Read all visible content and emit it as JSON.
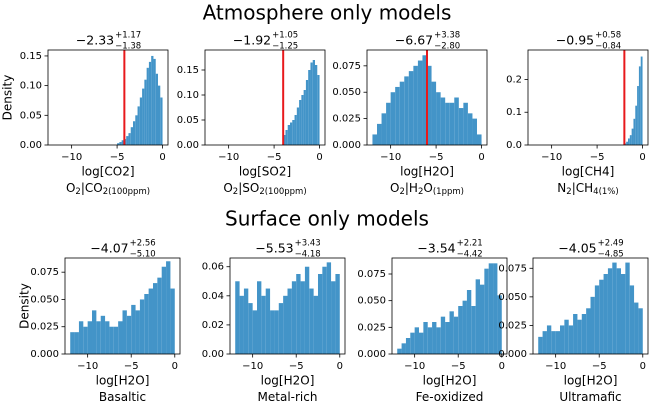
{
  "figure_titles": [
    "Atmosphere only models",
    "Surface only models"
  ],
  "chart_data": [
    {
      "type": "histogram",
      "title": {
        "value": "−2.33",
        "upper": "+1.17",
        "lower": "−1.38"
      },
      "xlabel": "log[CO2]",
      "ylabel": "Density",
      "sublabel": [
        {
          "text": "O"
        },
        {
          "text": "2",
          "sub": true
        },
        {
          "text": "|CO"
        },
        {
          "text": "2(100ppm)",
          "sub": true
        }
      ],
      "bins": [
        -5,
        -4.75,
        -4.5,
        -4.25,
        -4,
        -3.75,
        -3.5,
        -3.25,
        -3,
        -2.75,
        -2.5,
        -2.25,
        -2,
        -1.75,
        -1.5,
        -1.25,
        -1,
        -0.75,
        -0.5,
        -0.25,
        0
      ],
      "values": [
        0.003,
        0.005,
        0.008,
        0.01,
        0.015,
        0.02,
        0.03,
        0.04,
        0.05,
        0.065,
        0.08,
        0.095,
        0.11,
        0.13,
        0.14,
        0.15,
        0.145,
        0.12,
        0.1,
        0.08
      ],
      "color": "#4394c8",
      "vline": {
        "x": -4.2,
        "color": "#e8191c"
      },
      "xlim": [
        -12.6,
        0.6
      ],
      "xticks": [
        {
          "value": -10,
          "label": "−10"
        },
        {
          "value": -5,
          "label": "−5"
        },
        0
      ],
      "ylim": [
        0,
        0.16
      ],
      "yticks": [
        {
          "value": 0,
          "label": "0.00"
        },
        0.05,
        {
          "value": 0.1,
          "label": "0.10"
        },
        0.15
      ]
    },
    {
      "type": "histogram",
      "title": {
        "value": "−1.92",
        "upper": "+1.05",
        "lower": "−1.25"
      },
      "xlabel": "log[SO2]",
      "sublabel": [
        {
          "text": "O"
        },
        {
          "text": "2",
          "sub": true
        },
        {
          "text": "|SO"
        },
        {
          "text": "2(100ppm)",
          "sub": true
        }
      ],
      "bins": [
        -4,
        -3.75,
        -3.5,
        -3.25,
        -3,
        -2.75,
        -2.5,
        -2.25,
        -2,
        -1.75,
        -1.5,
        -1.25,
        -1,
        -0.75,
        -0.5,
        -0.25,
        0
      ],
      "values": [
        0.02,
        0.03,
        0.04,
        0.045,
        0.05,
        0.06,
        0.075,
        0.09,
        0.1,
        0.11,
        0.13,
        0.15,
        0.165,
        0.17,
        0.16,
        0.14
      ],
      "color": "#4394c8",
      "vline": {
        "x": -4,
        "color": "#e8191c"
      },
      "xlim": [
        -12.6,
        0.6
      ],
      "xticks": [
        {
          "value": -10,
          "label": "−10"
        },
        {
          "value": -5,
          "label": "−5"
        },
        0
      ],
      "ylim": [
        0,
        0.19
      ],
      "yticks": [
        {
          "value": 0,
          "label": "0.00"
        },
        0.05,
        {
          "value": 0.1,
          "label": "0.10"
        },
        0.15
      ]
    },
    {
      "type": "histogram",
      "title": {
        "value": "−6.67",
        "upper": "+3.38",
        "lower": "−2.80"
      },
      "xlabel": "log[H2O]",
      "sublabel": [
        {
          "text": "O"
        },
        {
          "text": "2",
          "sub": true
        },
        {
          "text": "|H"
        },
        {
          "text": "2",
          "sub": true
        },
        {
          "text": "O"
        },
        {
          "text": "(1ppm)",
          "sub": true
        }
      ],
      "bins": [
        -12,
        -11.5,
        -11,
        -10.5,
        -10,
        -9.5,
        -9,
        -8.5,
        -8,
        -7.5,
        -7,
        -6.5,
        -6,
        -5.5,
        -5,
        -4.5,
        -4,
        -3.5,
        -3,
        -2.5,
        -2,
        -1.5,
        -1,
        -0.5,
        0
      ],
      "values": [
        0.01,
        0.02,
        0.03,
        0.04,
        0.05,
        0.055,
        0.06,
        0.065,
        0.07,
        0.075,
        0.08,
        0.085,
        0.075,
        0.06,
        0.05,
        0.045,
        0.04,
        0.04,
        0.045,
        0.035,
        0.04,
        0.03,
        0.025,
        0.01
      ],
      "color": "#4394c8",
      "vline": {
        "x": -6,
        "color": "#e8191c"
      },
      "xlim": [
        -12.6,
        0.6
      ],
      "xticks": [
        {
          "value": -10,
          "label": "−10"
        },
        {
          "value": -5,
          "label": "−5"
        },
        0
      ],
      "ylim": [
        0,
        0.09
      ],
      "yticks": [
        {
          "value": 0,
          "label": "0.000"
        },
        0.025,
        {
          "value": 0.05,
          "label": "0.050"
        },
        0.075
      ]
    },
    {
      "type": "histogram",
      "title": {
        "value": "−0.95",
        "upper": "+0.58",
        "lower": "−0.84"
      },
      "xlabel": "log[CH4]",
      "sublabel": [
        {
          "text": "N"
        },
        {
          "text": "2",
          "sub": true
        },
        {
          "text": "|CH"
        },
        {
          "text": "4(1%)",
          "sub": true
        }
      ],
      "bins": [
        -2,
        -1.8,
        -1.6,
        -1.4,
        -1.2,
        -1,
        -0.8,
        -0.6,
        -0.4,
        -0.2,
        0
      ],
      "values": [
        0.005,
        0.01,
        0.02,
        0.03,
        0.05,
        0.08,
        0.12,
        0.18,
        0.24,
        0.27
      ],
      "color": "#4394c8",
      "vline": {
        "x": -2,
        "color": "#e8191c"
      },
      "xlim": [
        -12.6,
        0.6
      ],
      "xticks": [
        {
          "value": -10,
          "label": "−10"
        },
        {
          "value": -5,
          "label": "−5"
        },
        0
      ],
      "ylim": [
        0,
        0.29
      ],
      "yticks": [
        {
          "value": 0,
          "label": "0.0"
        },
        0.1,
        0.2
      ]
    },
    {
      "type": "histogram",
      "title": {
        "value": "−4.07",
        "upper": "+2.56",
        "lower": "−5.10"
      },
      "xlabel": "log[H2O]",
      "ylabel": "Density",
      "sublabel": [
        {
          "text": "Basaltic"
        }
      ],
      "bins": [
        -12,
        -11.5,
        -11,
        -10.5,
        -10,
        -9.5,
        -9,
        -8.5,
        -8,
        -7.5,
        -7,
        -6.5,
        -6,
        -5.5,
        -5,
        -4.5,
        -4,
        -3.5,
        -3,
        -2.5,
        -2,
        -1.5,
        -1,
        -0.5,
        0
      ],
      "values": [
        0.02,
        0.02,
        0.03,
        0.025,
        0.03,
        0.04,
        0.03,
        0.035,
        0.03,
        0.025,
        0.025,
        0.03,
        0.04,
        0.035,
        0.045,
        0.04,
        0.05,
        0.055,
        0.06,
        0.065,
        0.07,
        0.08,
        0.085,
        0.06
      ],
      "color": "#4394c8",
      "xlim": [
        -12.6,
        0.6
      ],
      "xticks": [
        {
          "value": -10,
          "label": "−10"
        },
        {
          "value": -5,
          "label": "−5"
        },
        0
      ],
      "ylim": [
        0,
        0.088
      ],
      "yticks": [
        {
          "value": 0,
          "label": "0.000"
        },
        0.025,
        {
          "value": 0.05,
          "label": "0.050"
        },
        0.075
      ]
    },
    {
      "type": "histogram",
      "title": {
        "value": "−5.53",
        "upper": "+3.43",
        "lower": "−4.18"
      },
      "xlabel": "log[H2O]",
      "sublabel": [
        {
          "text": "Metal-rich"
        }
      ],
      "bins": [
        -12,
        -11.5,
        -11,
        -10.5,
        -10,
        -9.5,
        -9,
        -8.5,
        -8,
        -7.5,
        -7,
        -6.5,
        -6,
        -5.5,
        -5,
        -4.5,
        -4,
        -3.5,
        -3,
        -2.5,
        -2,
        -1.5,
        -1,
        -0.5,
        0
      ],
      "values": [
        0.05,
        0.04,
        0.045,
        0.035,
        0.03,
        0.05,
        0.04,
        0.045,
        0.03,
        0.03,
        0.035,
        0.04,
        0.045,
        0.05,
        0.055,
        0.05,
        0.06,
        0.045,
        0.04,
        0.055,
        0.06,
        0.063,
        0.05,
        0.055
      ],
      "color": "#4394c8",
      "xlim": [
        -12.6,
        0.6
      ],
      "xticks": [
        {
          "value": -10,
          "label": "−10"
        },
        {
          "value": -5,
          "label": "−5"
        },
        0
      ],
      "ylim": [
        0,
        0.066
      ],
      "yticks": [
        {
          "value": 0,
          "label": "0.00"
        },
        0.02,
        0.04,
        0.06
      ]
    },
    {
      "type": "histogram",
      "title": {
        "value": "−3.54",
        "upper": "+2.21",
        "lower": "−4.42"
      },
      "xlabel": "log[H2O]",
      "sublabel": [
        {
          "text": "Fe-oxidized"
        }
      ],
      "bins": [
        -12,
        -11.5,
        -11,
        -10.5,
        -10,
        -9.5,
        -9,
        -8.5,
        -8,
        -7.5,
        -7,
        -6.5,
        -6,
        -5.5,
        -5,
        -4.5,
        -4,
        -3.5,
        -3,
        -2.5,
        -2,
        -1.5,
        -1,
        -0.5,
        0
      ],
      "values": [
        0.005,
        0.01,
        0.015,
        0.02,
        0.025,
        0.02,
        0.03,
        0.025,
        0.03,
        0.025,
        0.035,
        0.03,
        0.04,
        0.035,
        0.045,
        0.05,
        0.06,
        0.045,
        0.07,
        0.065,
        0.08,
        0.085,
        0.085,
        0.055
      ],
      "color": "#4394c8",
      "xlim": [
        -12.6,
        0.6
      ],
      "xticks": [
        {
          "value": -10,
          "label": "−10"
        },
        {
          "value": -5,
          "label": "−5"
        },
        0
      ],
      "ylim": [
        0,
        0.09
      ],
      "yticks": [
        {
          "value": 0,
          "label": "0.000"
        },
        0.025,
        {
          "value": 0.05,
          "label": "0.050"
        },
        0.075
      ]
    },
    {
      "type": "histogram",
      "title": {
        "value": "−4.05",
        "upper": "+2.49",
        "lower": "−4.85"
      },
      "xlabel": "log[H2O]",
      "sublabel": [
        {
          "text": "Ultramafic"
        }
      ],
      "bins": [
        -12,
        -11.5,
        -11,
        -10.5,
        -10,
        -9.5,
        -9,
        -8.5,
        -8,
        -7.5,
        -7,
        -6.5,
        -6,
        -5.5,
        -5,
        -4.5,
        -4,
        -3.5,
        -3,
        -2.5,
        -2,
        -1.5,
        -1,
        -0.5,
        0
      ],
      "values": [
        0.015,
        0.02,
        0.025,
        0.02,
        0.02,
        0.025,
        0.03,
        0.025,
        0.035,
        0.03,
        0.035,
        0.04,
        0.05,
        0.06,
        0.065,
        0.07,
        0.075,
        0.08,
        0.075,
        0.07,
        0.08,
        0.06,
        0.045,
        0.04
      ],
      "color": "#4394c8",
      "xlim": [
        -12.6,
        0.6
      ],
      "xticks": [
        {
          "value": -10,
          "label": "−10"
        },
        {
          "value": -5,
          "label": "−5"
        },
        0
      ],
      "ylim": [
        0,
        0.084
      ],
      "yticks": [
        {
          "value": 0,
          "label": "0.000"
        },
        0.025,
        {
          "value": 0.05,
          "label": "0.050"
        },
        0.075
      ]
    }
  ]
}
